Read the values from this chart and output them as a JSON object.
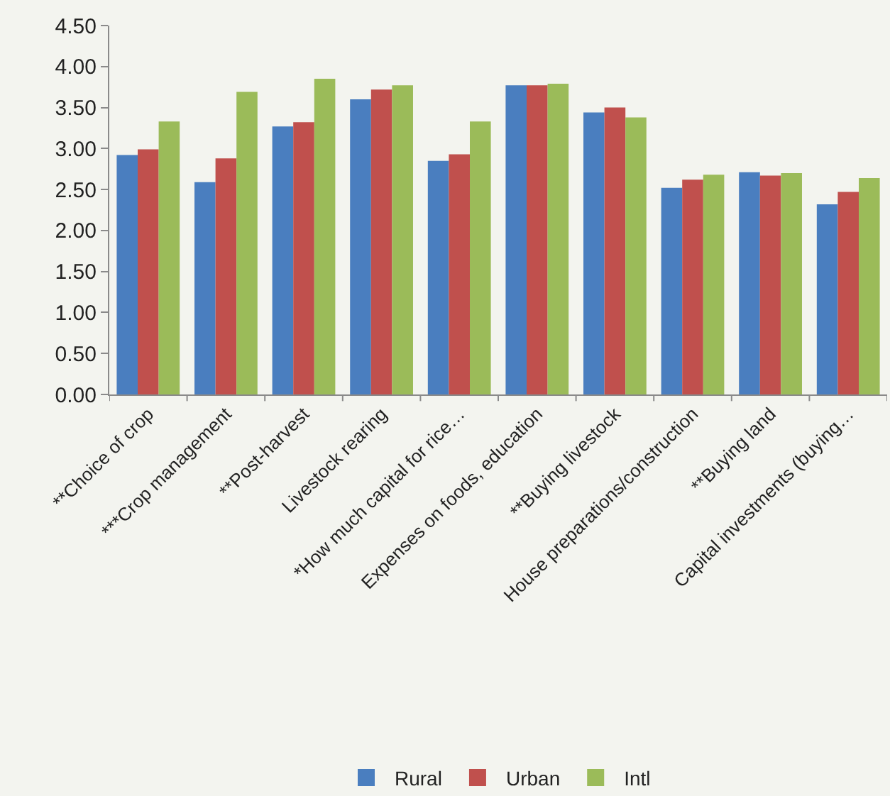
{
  "chart_data": {
    "type": "bar",
    "categories": [
      "**Choice of crop",
      "***Crop management",
      "**Post-harvest",
      "Livestock rearing",
      "*How much capital for rice…",
      "Expenses on foods, education",
      "**Buying livestock",
      "House preparations/construction",
      "**Buying land",
      "Capital investments (buying…"
    ],
    "series": [
      {
        "name": "Rural",
        "color": "#4a7ebf",
        "values": [
          2.92,
          2.59,
          3.27,
          3.6,
          2.85,
          3.77,
          3.44,
          2.52,
          2.71,
          2.32
        ]
      },
      {
        "name": "Urban",
        "color": "#c0504d",
        "values": [
          2.99,
          2.88,
          3.32,
          3.72,
          2.93,
          3.77,
          3.5,
          2.62,
          2.67,
          2.47
        ]
      },
      {
        "name": "Intl",
        "color": "#9bbb59",
        "values": [
          3.33,
          3.69,
          3.85,
          3.77,
          3.33,
          3.79,
          3.38,
          2.68,
          2.7,
          2.64
        ]
      }
    ],
    "ylim": [
      0,
      4.5
    ],
    "yticks": [
      {
        "value": 0,
        "label": "0.00"
      },
      {
        "value": 0.5,
        "label": "0.50"
      },
      {
        "value": 1,
        "label": "1.00"
      },
      {
        "value": 1.5,
        "label": "1.50"
      },
      {
        "value": 2,
        "label": "2.00"
      },
      {
        "value": 2.5,
        "label": "2.50"
      },
      {
        "value": 3,
        "label": "3.00"
      },
      {
        "value": 3.5,
        "label": "3.50"
      },
      {
        "value": 4,
        "label": "4.00"
      },
      {
        "value": 4.5,
        "label": "4.50"
      }
    ],
    "grid": false,
    "legend": "bottom"
  }
}
